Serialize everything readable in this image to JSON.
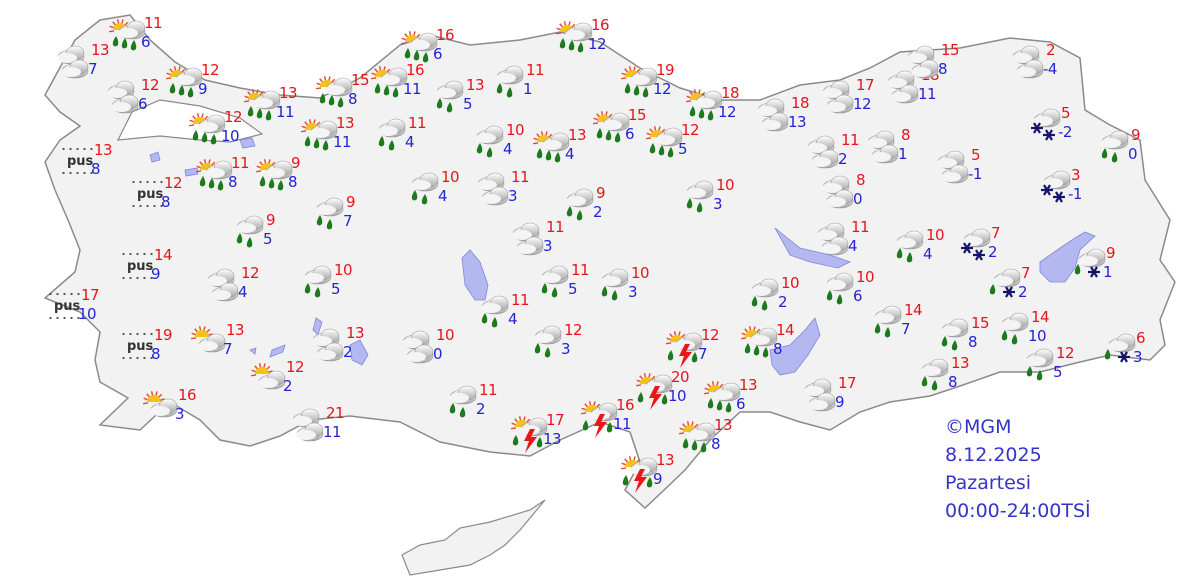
{
  "caption": {
    "copyright": "©MGM",
    "date": "8.12.2025",
    "day": "Pazartesi",
    "period": "00:00-24:00TSİ"
  },
  "fog_label": "pus",
  "colors": {
    "max_temp": "#e8141c",
    "min_temp": "#2424d0",
    "land": "#f2f2f2",
    "water": "#b4b8f0",
    "rain": "#1e7a1e",
    "snow": "#14146e",
    "lightning": "#e81818"
  },
  "stations": [
    {
      "icon": "partly-cloudy-rain",
      "max": "11",
      "min": "6"
    },
    {
      "icon": "cloudy",
      "max": "13",
      "min": "7"
    },
    {
      "icon": "cloudy",
      "max": "12",
      "min": "6"
    },
    {
      "icon": "partly-cloudy-rain",
      "max": "12",
      "min": "9"
    },
    {
      "icon": "partly-cloudy-rain",
      "max": "12",
      "min": "10"
    },
    {
      "icon": "partly-cloudy-rain",
      "max": "13",
      "min": "11"
    },
    {
      "icon": "partly-cloudy-rain",
      "max": "15",
      "min": "8"
    },
    {
      "icon": "partly-cloudy-rain",
      "max": "16",
      "min": "11"
    },
    {
      "icon": "partly-cloudy-rain",
      "max": "16",
      "min": "6"
    },
    {
      "icon": "rain",
      "max": "13",
      "min": "5"
    },
    {
      "icon": "rain",
      "max": "11",
      "min": "1"
    },
    {
      "icon": "partly-cloudy-rain",
      "max": "13",
      "min": "11"
    },
    {
      "icon": "rain",
      "max": "11",
      "min": "4"
    },
    {
      "icon": "fog",
      "max": "13",
      "min": "8"
    },
    {
      "icon": "fog",
      "max": "12",
      "min": "8"
    },
    {
      "icon": "partly-cloudy-rain",
      "max": "11",
      "min": "8"
    },
    {
      "icon": "partly-cloudy-rain",
      "max": "9",
      "min": "8"
    },
    {
      "icon": "rain",
      "max": "10",
      "min": "4"
    },
    {
      "icon": "partly-cloudy-rain",
      "max": "13",
      "min": "4"
    },
    {
      "icon": "partly-cloudy-rain",
      "max": "16",
      "min": "12"
    },
    {
      "icon": "rain",
      "max": "10",
      "min": "4"
    },
    {
      "icon": "cloudy",
      "max": "11",
      "min": "3"
    },
    {
      "icon": "rain",
      "max": "9",
      "min": "2"
    },
    {
      "icon": "rain",
      "max": "9",
      "min": "7"
    },
    {
      "icon": "rain",
      "max": "9",
      "min": "5"
    },
    {
      "icon": "cloudy",
      "max": "11",
      "min": "3"
    },
    {
      "icon": "partly-cloudy-rain",
      "max": "19",
      "min": "12"
    },
    {
      "icon": "partly-cloudy-rain",
      "max": "15",
      "min": "6"
    },
    {
      "icon": "partly-cloudy-rain",
      "max": "12",
      "min": "5"
    },
    {
      "icon": "partly-cloudy-rain",
      "max": "18",
      "min": "12"
    },
    {
      "icon": "rain",
      "max": "10",
      "min": "3"
    },
    {
      "icon": "cloudy",
      "max": "18",
      "min": "13"
    },
    {
      "icon": "cloudy",
      "max": "17",
      "min": "12"
    },
    {
      "icon": "cloudy",
      "max": "18",
      "min": "11"
    },
    {
      "icon": "cloudy",
      "max": "11",
      "min": "2"
    },
    {
      "icon": "cloudy",
      "max": "8",
      "min": "1"
    },
    {
      "icon": "cloudy",
      "max": "8",
      "min": "0"
    },
    {
      "icon": "cloudy",
      "max": "15",
      "min": "8"
    },
    {
      "icon": "cloudy",
      "max": "2",
      "min": "-4"
    },
    {
      "icon": "cloudy",
      "max": "5",
      "min": "-1"
    },
    {
      "icon": "snow",
      "max": "5",
      "min": "-2"
    },
    {
      "icon": "rain",
      "max": "9",
      "min": "0"
    },
    {
      "icon": "snow",
      "max": "3",
      "min": "-1"
    },
    {
      "icon": "cloudy",
      "max": "11",
      "min": "4"
    },
    {
      "icon": "rain",
      "max": "10",
      "min": "4"
    },
    {
      "icon": "snow",
      "max": "7",
      "min": "2"
    },
    {
      "icon": "rain-snow",
      "max": "9",
      "min": "1"
    },
    {
      "icon": "rain-snow",
      "max": "7",
      "min": "2"
    },
    {
      "icon": "rain",
      "max": "10",
      "min": "2"
    },
    {
      "icon": "rain",
      "max": "10",
      "min": "6"
    },
    {
      "icon": "rain",
      "max": "10",
      "min": "3"
    },
    {
      "icon": "rain",
      "max": "11",
      "min": "5"
    },
    {
      "icon": "rain",
      "max": "11",
      "min": "4"
    },
    {
      "icon": "cloudy",
      "max": "12",
      "min": "4"
    },
    {
      "icon": "rain",
      "max": "10",
      "min": "5"
    },
    {
      "icon": "fog",
      "max": "14",
      "min": "9"
    },
    {
      "icon": "fog",
      "max": "17",
      "min": "10"
    },
    {
      "icon": "fog",
      "max": "19",
      "min": "8"
    },
    {
      "icon": "partly-cloudy",
      "max": "13",
      "min": "7"
    },
    {
      "icon": "cloudy",
      "max": "13",
      "min": "2"
    },
    {
      "icon": "cloudy",
      "max": "10",
      "min": "0"
    },
    {
      "icon": "rain",
      "max": "12",
      "min": "3"
    },
    {
      "icon": "partly-cloudy",
      "max": "12",
      "min": "2"
    },
    {
      "icon": "partly-cloudy",
      "max": "16",
      "min": "3"
    },
    {
      "icon": "cloudy",
      "max": "21",
      "min": "11"
    },
    {
      "icon": "rain",
      "max": "11",
      "min": "2"
    },
    {
      "icon": "thunderstorm",
      "max": "17",
      "min": "13"
    },
    {
      "icon": "thunderstorm",
      "max": "16",
      "min": "11"
    },
    {
      "icon": "thunderstorm",
      "max": "12",
      "min": "7"
    },
    {
      "icon": "thunderstorm",
      "max": "20",
      "min": "10"
    },
    {
      "icon": "partly-cloudy-rain",
      "max": "13",
      "min": "6"
    },
    {
      "icon": "partly-cloudy-rain",
      "max": "14",
      "min": "8"
    },
    {
      "icon": "partly-cloudy-rain",
      "max": "13",
      "min": "8"
    },
    {
      "icon": "thunderstorm",
      "max": "13",
      "min": "9"
    },
    {
      "icon": "cloudy",
      "max": "17",
      "min": "9"
    },
    {
      "icon": "rain",
      "max": "14",
      "min": "7"
    },
    {
      "icon": "rain",
      "max": "15",
      "min": "8"
    },
    {
      "icon": "rain",
      "max": "14",
      "min": "10"
    },
    {
      "icon": "rain",
      "max": "13",
      "min": "8"
    },
    {
      "icon": "rain",
      "max": "12",
      "min": "5"
    },
    {
      "icon": "rain-snow",
      "max": "6",
      "min": "3"
    }
  ]
}
